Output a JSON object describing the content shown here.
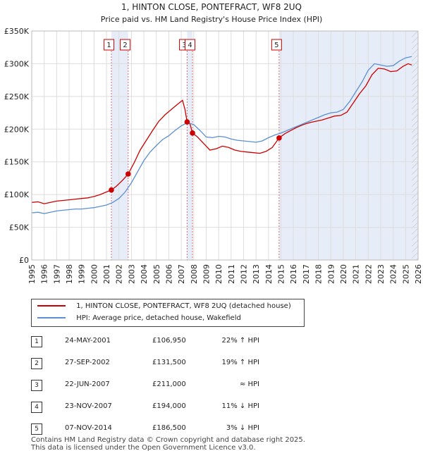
{
  "chart_data": {
    "type": "line",
    "title": "1, HINTON CLOSE, PONTEFRACT, WF8 2UQ",
    "subtitle": "Price paid vs. HM Land Registry's House Price Index (HPI)",
    "xlim": [
      1995,
      2026
    ],
    "ylim": [
      0,
      350000
    ],
    "x_ticks": [
      "1995",
      "1996",
      "1997",
      "1998",
      "1999",
      "2000",
      "2001",
      "2002",
      "2003",
      "2004",
      "2005",
      "2006",
      "2007",
      "2008",
      "2009",
      "2010",
      "2011",
      "2012",
      "2013",
      "2014",
      "2015",
      "2016",
      "2017",
      "2018",
      "2019",
      "2020",
      "2021",
      "2022",
      "2023",
      "2024",
      "2025",
      "2026"
    ],
    "y_ticks": [
      {
        "value": 0,
        "label": "£0"
      },
      {
        "value": 50000,
        "label": "£50K"
      },
      {
        "value": 100000,
        "label": "£100K"
      },
      {
        "value": 150000,
        "label": "£150K"
      },
      {
        "value": 200000,
        "label": "£200K"
      },
      {
        "value": 250000,
        "label": "£250K"
      },
      {
        "value": 300000,
        "label": "£300K"
      },
      {
        "value": 350000,
        "label": "£350K"
      }
    ],
    "series": [
      {
        "name": "1, HINTON CLOSE, PONTEFRACT, WF8 2UQ (detached house)",
        "color": "#cc0000",
        "points": [
          [
            1995.0,
            88000
          ],
          [
            1995.5,
            89000
          ],
          [
            1996.0,
            86000
          ],
          [
            1996.5,
            88000
          ],
          [
            1997.0,
            90000
          ],
          [
            1997.5,
            91000
          ],
          [
            1998.0,
            92000
          ],
          [
            1998.5,
            93000
          ],
          [
            1999.0,
            94000
          ],
          [
            1999.5,
            95000
          ],
          [
            2000.0,
            97000
          ],
          [
            2000.5,
            100000
          ],
          [
            2001.0,
            104000
          ],
          [
            2001.4,
            106950
          ],
          [
            2001.8,
            113000
          ],
          [
            2002.3,
            122000
          ],
          [
            2002.74,
            131500
          ],
          [
            2003.2,
            148000
          ],
          [
            2003.7,
            168000
          ],
          [
            2004.2,
            183000
          ],
          [
            2004.7,
            198000
          ],
          [
            2005.2,
            212000
          ],
          [
            2005.7,
            222000
          ],
          [
            2006.2,
            230000
          ],
          [
            2006.7,
            238000
          ],
          [
            2007.1,
            244000
          ],
          [
            2007.3,
            230000
          ],
          [
            2007.47,
            211000
          ],
          [
            2007.7,
            208000
          ],
          [
            2007.9,
            194000
          ],
          [
            2008.3,
            188000
          ],
          [
            2008.8,
            178000
          ],
          [
            2009.3,
            168000
          ],
          [
            2009.8,
            170000
          ],
          [
            2010.3,
            174000
          ],
          [
            2010.8,
            172000
          ],
          [
            2011.3,
            168000
          ],
          [
            2011.8,
            166000
          ],
          [
            2012.3,
            165000
          ],
          [
            2012.8,
            164000
          ],
          [
            2013.3,
            163000
          ],
          [
            2013.8,
            166000
          ],
          [
            2014.3,
            172000
          ],
          [
            2014.85,
            186500
          ],
          [
            2015.3,
            193000
          ],
          [
            2015.8,
            198000
          ],
          [
            2016.3,
            203000
          ],
          [
            2016.8,
            207000
          ],
          [
            2017.3,
            210000
          ],
          [
            2017.8,
            212000
          ],
          [
            2018.3,
            214000
          ],
          [
            2018.8,
            217000
          ],
          [
            2019.3,
            220000
          ],
          [
            2019.8,
            221000
          ],
          [
            2020.3,
            226000
          ],
          [
            2020.8,
            240000
          ],
          [
            2021.3,
            254000
          ],
          [
            2021.8,
            266000
          ],
          [
            2022.3,
            283000
          ],
          [
            2022.8,
            293000
          ],
          [
            2023.3,
            292000
          ],
          [
            2023.8,
            288000
          ],
          [
            2024.3,
            289000
          ],
          [
            2024.8,
            296000
          ],
          [
            2025.2,
            300000
          ],
          [
            2025.5,
            298000
          ]
        ]
      },
      {
        "name": "HPI: Average price, detached house, Wakefield",
        "color": "#5b8fd0",
        "points": [
          [
            1995.0,
            72000
          ],
          [
            1995.5,
            73000
          ],
          [
            1996.0,
            71000
          ],
          [
            1996.5,
            73000
          ],
          [
            1997.0,
            75000
          ],
          [
            1997.5,
            76000
          ],
          [
            1998.0,
            77000
          ],
          [
            1998.5,
            78000
          ],
          [
            1999.0,
            78000
          ],
          [
            1999.5,
            79000
          ],
          [
            2000.0,
            80000
          ],
          [
            2000.5,
            82000
          ],
          [
            2001.0,
            84000
          ],
          [
            2001.5,
            88000
          ],
          [
            2002.0,
            94000
          ],
          [
            2002.5,
            104000
          ],
          [
            2003.0,
            118000
          ],
          [
            2003.5,
            135000
          ],
          [
            2004.0,
            152000
          ],
          [
            2004.5,
            165000
          ],
          [
            2005.0,
            175000
          ],
          [
            2005.5,
            184000
          ],
          [
            2006.0,
            190000
          ],
          [
            2006.5,
            198000
          ],
          [
            2007.0,
            205000
          ],
          [
            2007.5,
            210000
          ],
          [
            2008.0,
            207000
          ],
          [
            2008.5,
            198000
          ],
          [
            2009.0,
            188000
          ],
          [
            2009.5,
            187000
          ],
          [
            2010.0,
            189000
          ],
          [
            2010.5,
            188000
          ],
          [
            2011.0,
            185000
          ],
          [
            2011.5,
            183000
          ],
          [
            2012.0,
            182000
          ],
          [
            2012.5,
            181000
          ],
          [
            2013.0,
            180000
          ],
          [
            2013.5,
            182000
          ],
          [
            2014.0,
            187000
          ],
          [
            2014.5,
            191000
          ],
          [
            2015.0,
            194000
          ],
          [
            2015.5,
            198000
          ],
          [
            2016.0,
            202000
          ],
          [
            2016.5,
            206000
          ],
          [
            2017.0,
            210000
          ],
          [
            2017.5,
            214000
          ],
          [
            2018.0,
            218000
          ],
          [
            2018.5,
            222000
          ],
          [
            2019.0,
            225000
          ],
          [
            2019.5,
            226000
          ],
          [
            2020.0,
            230000
          ],
          [
            2020.5,
            242000
          ],
          [
            2021.0,
            257000
          ],
          [
            2021.5,
            272000
          ],
          [
            2022.0,
            290000
          ],
          [
            2022.5,
            300000
          ],
          [
            2023.0,
            298000
          ],
          [
            2023.5,
            296000
          ],
          [
            2024.0,
            297000
          ],
          [
            2024.5,
            304000
          ],
          [
            2025.0,
            309000
          ],
          [
            2025.5,
            311000
          ]
        ]
      }
    ],
    "transactions": [
      {
        "n": "1",
        "x": 2001.39,
        "price": 106950,
        "label_x": 2001.2
      },
      {
        "n": "2",
        "x": 2002.74,
        "price": 131500,
        "label_x": 2002.5
      },
      {
        "n": "3",
        "x": 2007.47,
        "price": 211000,
        "label_x": 2007.25
      },
      {
        "n": "4",
        "x": 2007.9,
        "price": 194000,
        "label_x": 2007.7
      },
      {
        "n": "5",
        "x": 2014.85,
        "price": 186500,
        "label_x": 2014.65
      }
    ],
    "shaded_ranges": [
      [
        2001.39,
        2002.74
      ],
      [
        2007.47,
        2007.9
      ],
      [
        2014.85,
        2026
      ]
    ],
    "hatched_from": 2025.5
  },
  "legend": {
    "property_label": "1, HINTON CLOSE, PONTEFRACT, WF8 2UQ (detached house)",
    "hpi_label": "HPI: Average price, detached house, Wakefield",
    "property_color": "#cc0000",
    "hpi_color": "#5b8fd0"
  },
  "table": [
    {
      "n": "1",
      "date": "24-MAY-2001",
      "price": "£106,950",
      "hpi": "22% ↑ HPI"
    },
    {
      "n": "2",
      "date": "27-SEP-2002",
      "price": "£131,500",
      "hpi": "19% ↑ HPI"
    },
    {
      "n": "3",
      "date": "22-JUN-2007",
      "price": "£211,000",
      "hpi": "≈ HPI"
    },
    {
      "n": "4",
      "date": "23-NOV-2007",
      "price": "£194,000",
      "hpi": "11% ↓ HPI"
    },
    {
      "n": "5",
      "date": "07-NOV-2014",
      "price": "£186,500",
      "hpi": "3% ↓ HPI"
    }
  ],
  "footer": {
    "line1": "Contains HM Land Registry data © Crown copyright and database right 2025.",
    "line2": "This data is licensed under the Open Government Licence v3.0."
  }
}
